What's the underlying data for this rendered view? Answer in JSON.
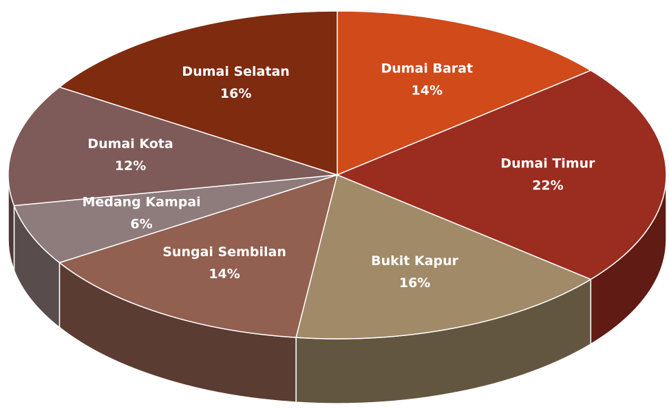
{
  "chart_data": {
    "type": "pie",
    "categories": [
      "Dumai Barat",
      "Dumai Timur",
      "Bukit Kapur",
      "Sungai Sembilan",
      "Medang Kampai",
      "Dumai Kota",
      "Dumai Selatan"
    ],
    "values": [
      14,
      22,
      16,
      14,
      6,
      12,
      16
    ],
    "value_labels": [
      "14%",
      "22%",
      "16%",
      "14%",
      "6%",
      "12%",
      "16%"
    ],
    "colors": [
      "#d04a1a",
      "#9a2c20",
      "#a08a68",
      "#926050",
      "#8e7b7c",
      "#7e5b58",
      "#7e2b10"
    ],
    "three_d": true
  }
}
